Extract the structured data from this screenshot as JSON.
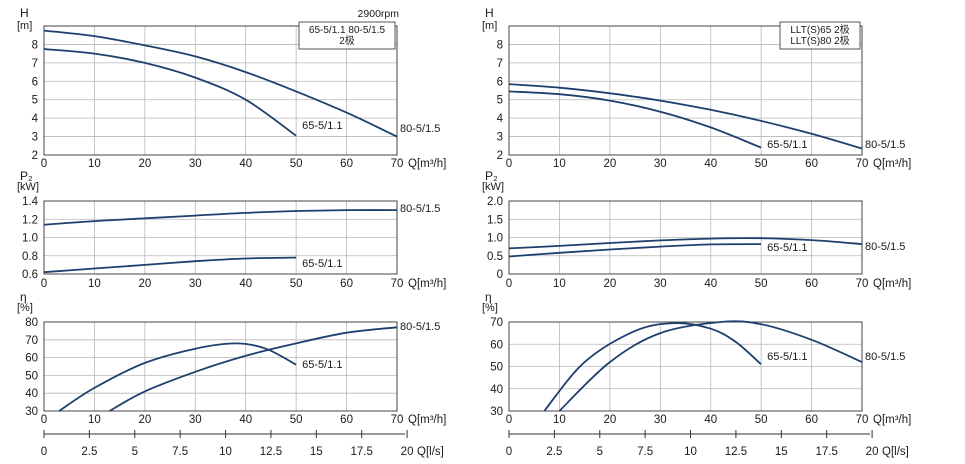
{
  "chart_data": [
    {
      "type": "line",
      "group": "left",
      "panel": "head",
      "ylabel": "H",
      "yunit": "[m]",
      "xlim": [
        0,
        70
      ],
      "ylim": [
        2,
        9
      ],
      "yticks": [
        "2",
        "3",
        "4",
        "5",
        "6",
        "7",
        "8"
      ],
      "xticks": [
        "0",
        "10",
        "20",
        "30",
        "40",
        "50",
        "60",
        "70"
      ],
      "xunit": "Q[m³/h]",
      "speed": "2900rpm",
      "legend": [
        "65-5/1.1 80-5/1.5",
        "2极"
      ],
      "grid": true,
      "series": [
        {
          "name": "65-5/1.1",
          "x": [
            0,
            10,
            20,
            30,
            40,
            50
          ],
          "y": [
            7.75,
            7.5,
            7.0,
            6.2,
            5.0,
            3.05
          ]
        },
        {
          "name": "80-5/1.5",
          "x": [
            0,
            10,
            20,
            30,
            40,
            50,
            60,
            70
          ],
          "y": [
            8.75,
            8.45,
            7.95,
            7.35,
            6.5,
            5.45,
            4.3,
            3.0
          ]
        }
      ]
    },
    {
      "type": "line",
      "group": "left",
      "panel": "power",
      "ylabel": "P₂",
      "yunit": "[kW]",
      "xlim": [
        0,
        70
      ],
      "ylim": [
        0.6,
        1.4
      ],
      "yticks": [
        "0.6",
        "0.8",
        "1.0",
        "1.2",
        "1.4"
      ],
      "xticks": [
        "0",
        "10",
        "20",
        "30",
        "40",
        "50",
        "60",
        "70"
      ],
      "xunit": "Q[m³/h]",
      "grid": true,
      "series": [
        {
          "name": "65-5/1.1",
          "x": [
            0,
            10,
            20,
            30,
            40,
            50
          ],
          "y": [
            0.62,
            0.66,
            0.7,
            0.74,
            0.77,
            0.78
          ]
        },
        {
          "name": "80-5/1.5",
          "x": [
            0,
            10,
            20,
            30,
            40,
            50,
            60,
            70
          ],
          "y": [
            1.14,
            1.18,
            1.21,
            1.24,
            1.27,
            1.29,
            1.3,
            1.3
          ]
        }
      ]
    },
    {
      "type": "line",
      "group": "left",
      "panel": "efficiency",
      "ylabel": "η",
      "yunit": "[%]",
      "xlim": [
        0,
        70
      ],
      "ylim": [
        30,
        80
      ],
      "yticks": [
        "30",
        "40",
        "50",
        "60",
        "70",
        "80"
      ],
      "xticks": [
        "0",
        "10",
        "20",
        "30",
        "40",
        "50",
        "60",
        "70"
      ],
      "xunit": "Q[m³/h]",
      "x2ticks": [
        "0",
        "2.5",
        "5",
        "7.5",
        "10",
        "12.5",
        "15",
        "17.5",
        "20"
      ],
      "x2unit": "Q[l/s]",
      "grid": true,
      "series": [
        {
          "name": "65-5/1.1",
          "x": [
            3,
            10,
            20,
            30,
            38,
            44,
            50
          ],
          "y": [
            30,
            43,
            57,
            65,
            68,
            65,
            56
          ]
        },
        {
          "name": "80-5/1.5",
          "x": [
            13,
            20,
            30,
            40,
            50,
            60,
            70
          ],
          "y": [
            30,
            41,
            52,
            61,
            68,
            74,
            77
          ]
        }
      ]
    },
    {
      "type": "line",
      "group": "right",
      "panel": "head",
      "ylabel": "H",
      "yunit": "[m]",
      "xlim": [
        0,
        70
      ],
      "ylim": [
        2,
        9
      ],
      "yticks": [
        "2",
        "3",
        "4",
        "5",
        "6",
        "7",
        "8"
      ],
      "xticks": [
        "0",
        "10",
        "20",
        "30",
        "40",
        "50",
        "60",
        "70"
      ],
      "xunit": "Q[m³/h]",
      "legend": [
        "LLT(S)65  2极",
        "LLT(S)80  2极"
      ],
      "grid": true,
      "series": [
        {
          "name": "65-5/1.1",
          "x": [
            0,
            10,
            20,
            30,
            40,
            50
          ],
          "y": [
            5.45,
            5.3,
            4.95,
            4.35,
            3.5,
            2.4
          ]
        },
        {
          "name": "80-5/1.5",
          "x": [
            0,
            10,
            20,
            30,
            40,
            50,
            60,
            70
          ],
          "y": [
            5.85,
            5.65,
            5.35,
            4.95,
            4.45,
            3.85,
            3.15,
            2.35
          ]
        }
      ]
    },
    {
      "type": "line",
      "group": "right",
      "panel": "power",
      "ylabel": "P₂",
      "yunit": "[kW]",
      "xlim": [
        0,
        70
      ],
      "ylim": [
        0,
        2.0
      ],
      "yticks": [
        "0",
        "0.5",
        "1.0",
        "1.5",
        "2.0"
      ],
      "xticks": [
        "0",
        "10",
        "20",
        "30",
        "40",
        "50",
        "60",
        "70"
      ],
      "xunit": "Q[m³/h]",
      "grid": true,
      "series": [
        {
          "name": "65-5/1.1",
          "x": [
            0,
            10,
            20,
            30,
            40,
            50
          ],
          "y": [
            0.48,
            0.58,
            0.67,
            0.75,
            0.81,
            0.82
          ]
        },
        {
          "name": "80-5/1.5",
          "x": [
            0,
            10,
            20,
            30,
            40,
            50,
            60,
            70
          ],
          "y": [
            0.7,
            0.77,
            0.85,
            0.92,
            0.97,
            0.98,
            0.93,
            0.82
          ]
        }
      ]
    },
    {
      "type": "line",
      "group": "right",
      "panel": "efficiency",
      "ylabel": "η",
      "yunit": "[%]",
      "xlim": [
        0,
        70
      ],
      "ylim": [
        30,
        70
      ],
      "yticks": [
        "30",
        "40",
        "50",
        "60",
        "70"
      ],
      "xticks": [
        "0",
        "10",
        "20",
        "30",
        "40",
        "50",
        "60",
        "70"
      ],
      "xunit": "Q[m³/h]",
      "x2ticks": [
        "0",
        "2.5",
        "5",
        "7.5",
        "10",
        "12.5",
        "15",
        "17.5",
        "20"
      ],
      "x2unit": "Q[l/s]",
      "grid": true,
      "series": [
        {
          "name": "65-5/1.1",
          "x": [
            7,
            15,
            25,
            33,
            40,
            45,
            50
          ],
          "y": [
            30,
            52,
            66,
            69.5,
            67,
            61,
            51
          ]
        },
        {
          "name": "80-5/1.5",
          "x": [
            10,
            20,
            30,
            42,
            50,
            60,
            70
          ],
          "y": [
            30,
            52,
            65,
            70,
            69,
            62,
            52
          ]
        }
      ]
    }
  ]
}
